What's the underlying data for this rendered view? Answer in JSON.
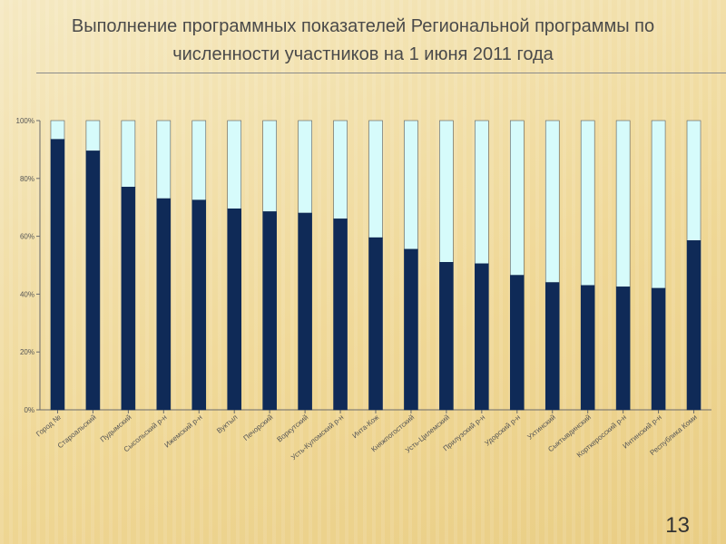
{
  "slide": {
    "title": "Выполнение программных показателей Региональной программы по численности участников на 1 июня 2011 года",
    "page_number": "13"
  },
  "colors": {
    "done": "#0f2a57",
    "remaining": "#d6fbfb",
    "bar_outline": "#5a5a5a",
    "axis": "#6a6a6a"
  },
  "chart_data": {
    "type": "bar",
    "stacked": true,
    "normalized_percent": true,
    "title": "",
    "xlabel": "",
    "ylabel": "",
    "ylim": [
      0,
      100
    ],
    "yticks": [
      "0%",
      "20%",
      "40%",
      "60%",
      "80%",
      "100%"
    ],
    "categories": [
      "Город №",
      "Староальский",
      "Пудымский",
      "Сысольский р-н",
      "Ижемский р-н",
      "Вуктыл",
      "Печорский",
      "Воркутский",
      "Усть-Куломский р-н",
      "Инта-Кож",
      "Княжпогостский",
      "Усть-Цилемский",
      "Прилузский р-н",
      "Удорский р-н",
      "Ухтинский",
      "Сыктывдинский",
      "Корткеросский р-н",
      "Интинский р-н",
      "Республика Коми"
    ],
    "series": [
      {
        "values": [
          93.5,
          89.5,
          77,
          73,
          72.5,
          69.5,
          68.5,
          68,
          66,
          59.5,
          55.5,
          51,
          50.5,
          46.5,
          44,
          43,
          42.5,
          42,
          58.5
        ]
      },
      {
        "values": [
          6.5,
          10.5,
          23,
          27,
          27.5,
          30.5,
          31.5,
          32,
          34,
          40.5,
          44.5,
          49,
          49.5,
          53.5,
          56,
          57,
          57.5,
          58,
          41.5
        ]
      }
    ]
  }
}
